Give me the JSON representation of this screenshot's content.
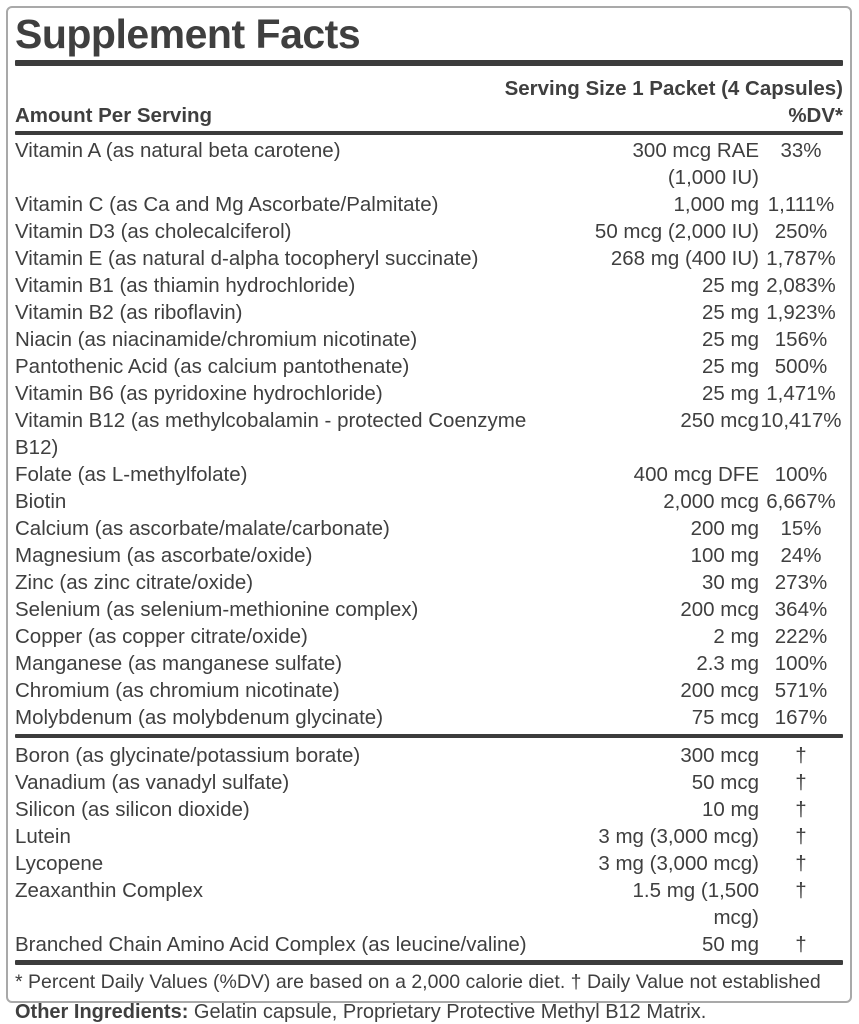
{
  "label": {
    "title": "Supplement Facts",
    "serving_size": "Serving Size 1 Packet (4 Capsules)",
    "amount_header": "Amount Per Serving",
    "dv_header": "%DV*",
    "main_rows": [
      {
        "name": "Vitamin A (as natural beta carotene)",
        "amount": "300 mcg RAE (1,000 IU)",
        "dv": "33%"
      },
      {
        "name": "Vitamin C (as Ca and Mg Ascorbate/Palmitate)",
        "amount": "1,000 mg",
        "dv": "1,111%"
      },
      {
        "name": "Vitamin D3 (as cholecalciferol)",
        "amount": "50 mcg (2,000 IU)",
        "dv": "250%"
      },
      {
        "name": "Vitamin E (as natural d-alpha tocopheryl succinate)",
        "amount": "268 mg (400 IU)",
        "dv": "1,787%"
      },
      {
        "name": "Vitamin B1 (as thiamin hydrochloride)",
        "amount": "25 mg",
        "dv": "2,083%"
      },
      {
        "name": "Vitamin B2 (as riboflavin)",
        "amount": "25 mg",
        "dv": "1,923%"
      },
      {
        "name": "Niacin (as niacinamide/chromium nicotinate)",
        "amount": "25 mg",
        "dv": "156%"
      },
      {
        "name": "Pantothenic Acid (as calcium pantothenate)",
        "amount": "25 mg",
        "dv": "500%"
      },
      {
        "name": "Vitamin B6 (as pyridoxine hydrochloride)",
        "amount": "25 mg",
        "dv": "1,471%"
      },
      {
        "name": "Vitamin B12 (as methylcobalamin - protected Coenzyme B12)",
        "amount": "250 mcg",
        "dv": "10,417%"
      },
      {
        "name": "Folate (as L-methylfolate)",
        "amount": "400 mcg DFE",
        "dv": "100%"
      },
      {
        "name": "Biotin",
        "amount": "2,000 mcg",
        "dv": "6,667%"
      },
      {
        "name": "Calcium (as ascorbate/malate/carbonate)",
        "amount": "200 mg",
        "dv": "15%"
      },
      {
        "name": "Magnesium (as ascorbate/oxide)",
        "amount": "100 mg",
        "dv": "24%"
      },
      {
        "name": "Zinc (as zinc citrate/oxide)",
        "amount": "30 mg",
        "dv": "273%"
      },
      {
        "name": "Selenium (as selenium-methionine complex)",
        "amount": "200 mcg",
        "dv": "364%"
      },
      {
        "name": "Copper (as copper citrate/oxide)",
        "amount": "2 mg",
        "dv": "222%"
      },
      {
        "name": "Manganese (as manganese sulfate)",
        "amount": "2.3 mg",
        "dv": "100%"
      },
      {
        "name": "Chromium (as chromium nicotinate)",
        "amount": "200 mcg",
        "dv": "571%"
      },
      {
        "name": "Molybdenum (as molybdenum glycinate)",
        "amount": "75 mcg",
        "dv": "167%"
      }
    ],
    "secondary_rows": [
      {
        "name": "Boron (as glycinate/potassium borate)",
        "amount": "300 mcg",
        "dv": "†"
      },
      {
        "name": "Vanadium (as vanadyl sulfate)",
        "amount": "50 mcg",
        "dv": "†"
      },
      {
        "name": "Silicon (as silicon dioxide)",
        "amount": "10 mg",
        "dv": "†"
      },
      {
        "name": "Lutein",
        "amount": "3 mg (3,000 mcg)",
        "dv": "†"
      },
      {
        "name": "Lycopene",
        "amount": "3 mg (3,000 mcg)",
        "dv": "†"
      },
      {
        "name": "Zeaxanthin Complex",
        "amount": "1.5 mg (1,500 mcg)",
        "dv": "†"
      },
      {
        "name": "Branched Chain Amino Acid Complex (as leucine/valine)",
        "amount": "50 mg",
        "dv": "†"
      }
    ],
    "footnote": "* Percent Daily Values (%DV) are based on a 2,000 calorie diet. † Daily Value not established",
    "other_ingredients_label": "Other Ingredients:",
    "other_ingredients_text": " Gelatin capsule, Proprietary Protective Methyl B12 Matrix.",
    "colors": {
      "text": "#3f3f3f",
      "bar": "#3c3c3c",
      "border": "#a9a9a9",
      "background": "#ffffff"
    }
  }
}
